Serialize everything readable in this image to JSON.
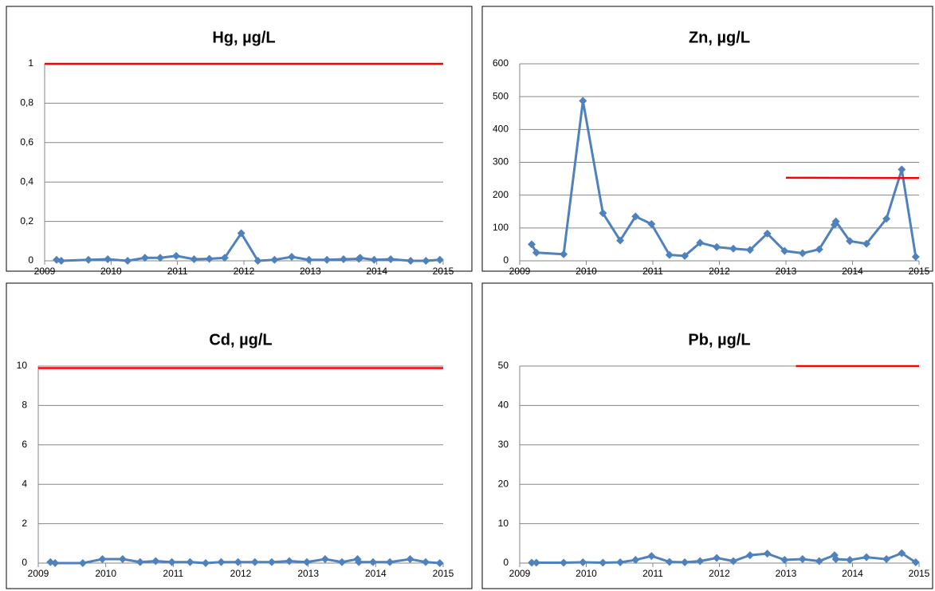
{
  "chart_data": [
    {
      "type": "line",
      "title": "Hg, µg/L",
      "x": [
        2009.18,
        2009.25,
        2009.66,
        2009.95,
        2010.25,
        2010.51,
        2010.74,
        2010.98,
        2011.25,
        2011.48,
        2011.71,
        2011.96,
        2012.21,
        2012.46,
        2012.72,
        2012.98,
        2013.25,
        2013.5,
        2013.73,
        2013.75,
        2013.96,
        2014.21,
        2014.51,
        2014.74,
        2014.95
      ],
      "series": [
        {
          "color": "#4f81bd",
          "values": [
            0.005,
            0,
            0.005,
            0.008,
            0,
            0.015,
            0.015,
            0.025,
            0.008,
            0.01,
            0.015,
            0.14,
            0,
            0.005,
            0.02,
            0.005,
            0.005,
            0.008,
            0.01,
            0.015,
            0.005,
            0.008,
            0,
            0,
            0.005
          ],
          "markers": true
        },
        {
          "color": "#ff0000",
          "x": [
            2009,
            2015
          ],
          "values": [
            1,
            1
          ],
          "markers": false
        }
      ],
      "xlim": [
        2009,
        2015
      ],
      "xticks": [
        2009,
        2010,
        2011,
        2012,
        2013,
        2014,
        2015
      ],
      "ylim": [
        0,
        1
      ],
      "yticks": [
        0,
        {
          "value": 0.2,
          "label": "0,2"
        },
        {
          "value": 0.4,
          "label": "0,4"
        },
        {
          "value": 0.6,
          "label": "0,6"
        },
        {
          "value": 0.8,
          "label": "0,8"
        },
        1
      ],
      "grid": true
    },
    {
      "type": "line",
      "title": "Zn, µg/L",
      "x": [
        2009.18,
        2009.25,
        2009.66,
        2009.95,
        2010.25,
        2010.51,
        2010.74,
        2010.98,
        2011.25,
        2011.48,
        2011.71,
        2011.96,
        2012.21,
        2012.46,
        2012.72,
        2012.98,
        2013.25,
        2013.5,
        2013.73,
        2013.75,
        2013.96,
        2014.21,
        2014.51,
        2014.74,
        2014.95
      ],
      "series": [
        {
          "color": "#4f81bd",
          "values": [
            50,
            25,
            20,
            487,
            145,
            62,
            135,
            112,
            18,
            15,
            55,
            42,
            37,
            33,
            83,
            30,
            23,
            35,
            110,
            120,
            60,
            52,
            128,
            278,
            12
          ],
          "markers": true
        },
        {
          "color": "#ff0000",
          "x": [
            2013,
            2015
          ],
          "values": [
            253,
            252
          ],
          "markers": false
        }
      ],
      "xlim": [
        2009,
        2015
      ],
      "xticks": [
        2009,
        2010,
        2011,
        2012,
        2013,
        2014,
        2015
      ],
      "ylim": [
        0,
        600
      ],
      "yticks": [
        0,
        100,
        200,
        300,
        400,
        500,
        600
      ],
      "grid": true
    },
    {
      "type": "line",
      "title": "Cd, µg/L",
      "x": [
        2009.18,
        2009.25,
        2009.66,
        2009.95,
        2010.25,
        2010.51,
        2010.74,
        2010.98,
        2011.25,
        2011.48,
        2011.71,
        2011.96,
        2012.21,
        2012.46,
        2012.72,
        2012.98,
        2013.25,
        2013.5,
        2013.73,
        2013.75,
        2013.96,
        2014.21,
        2014.51,
        2014.74,
        2014.95
      ],
      "series": [
        {
          "color": "#4f81bd",
          "values": [
            0.05,
            0,
            0,
            0.2,
            0.2,
            0.05,
            0.1,
            0.05,
            0.05,
            0,
            0.05,
            0.05,
            0.05,
            0.05,
            0.1,
            0.05,
            0.2,
            0.05,
            0.2,
            0.05,
            0.05,
            0.05,
            0.2,
            0.05,
            0
          ],
          "markers": true
        },
        {
          "color": "#ff0000",
          "x": [
            2009,
            2015
          ],
          "values": [
            9.9,
            9.9
          ],
          "markers": false
        }
      ],
      "xlim": [
        2009,
        2015
      ],
      "xticks": [
        2009,
        2010,
        2011,
        2012,
        2013,
        2014,
        2015
      ],
      "ylim": [
        0,
        10
      ],
      "yticks": [
        0,
        2,
        4,
        6,
        8,
        10
      ],
      "grid": true
    },
    {
      "type": "line",
      "title": "Pb, µg/L",
      "x": [
        2009.18,
        2009.25,
        2009.66,
        2009.95,
        2010.25,
        2010.51,
        2010.74,
        2010.98,
        2011.25,
        2011.48,
        2011.71,
        2011.96,
        2012.21,
        2012.46,
        2012.72,
        2012.98,
        2013.25,
        2013.5,
        2013.73,
        2013.75,
        2013.96,
        2014.21,
        2014.51,
        2014.74,
        2014.95
      ],
      "series": [
        {
          "color": "#4f81bd",
          "values": [
            0.1,
            0.1,
            0.1,
            0.2,
            0.1,
            0.2,
            0.8,
            1.8,
            0.3,
            0.2,
            0.5,
            1.3,
            0.5,
            2,
            2.4,
            0.8,
            1,
            0.5,
            2,
            1,
            0.8,
            1.5,
            1,
            2.5,
            0.2
          ],
          "markers": true
        },
        {
          "color": "#ff0000",
          "x": [
            2013.15,
            2015
          ],
          "values": [
            50,
            50
          ],
          "markers": false
        }
      ],
      "xlim": [
        2009,
        2015
      ],
      "xticks": [
        2009,
        2010,
        2011,
        2012,
        2013,
        2014,
        2015
      ],
      "ylim": [
        0,
        50
      ],
      "yticks": [
        0,
        10,
        20,
        30,
        40,
        50
      ],
      "grid": true
    }
  ]
}
